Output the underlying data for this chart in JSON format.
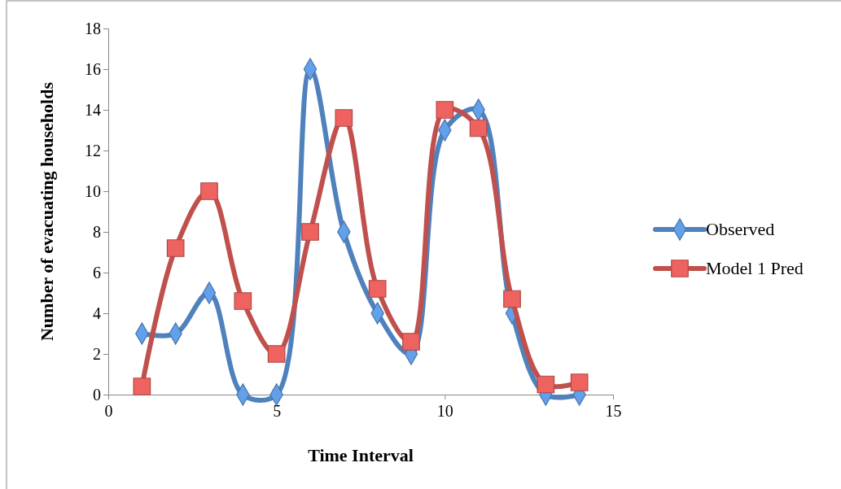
{
  "chart_data": {
    "type": "line",
    "xlabel": "Time Interval",
    "ylabel": "Number of evacuating households",
    "xlim": [
      0,
      15
    ],
    "xticks": [
      0,
      5,
      10,
      15
    ],
    "ylim": [
      0,
      18
    ],
    "yticks": [
      0,
      2,
      4,
      6,
      8,
      10,
      12,
      14,
      16,
      18
    ],
    "x": [
      1,
      2,
      3,
      4,
      5,
      6,
      7,
      8,
      9,
      10,
      11,
      12,
      13,
      14
    ],
    "legend": "right",
    "grid": false,
    "series": [
      {
        "name": "Observed",
        "color": "#4f81bd",
        "marker": "diamond",
        "values": [
          3,
          3,
          5,
          0,
          0,
          16,
          8,
          4,
          2,
          13,
          14,
          4,
          0,
          0
        ]
      },
      {
        "name": "Model 1 Pred",
        "color": "#c0504d",
        "marker": "square",
        "values": [
          0.4,
          7.2,
          10.0,
          4.6,
          2.0,
          8.0,
          13.6,
          5.2,
          2.6,
          14.0,
          13.1,
          4.7,
          0.5,
          0.6
        ]
      }
    ]
  }
}
